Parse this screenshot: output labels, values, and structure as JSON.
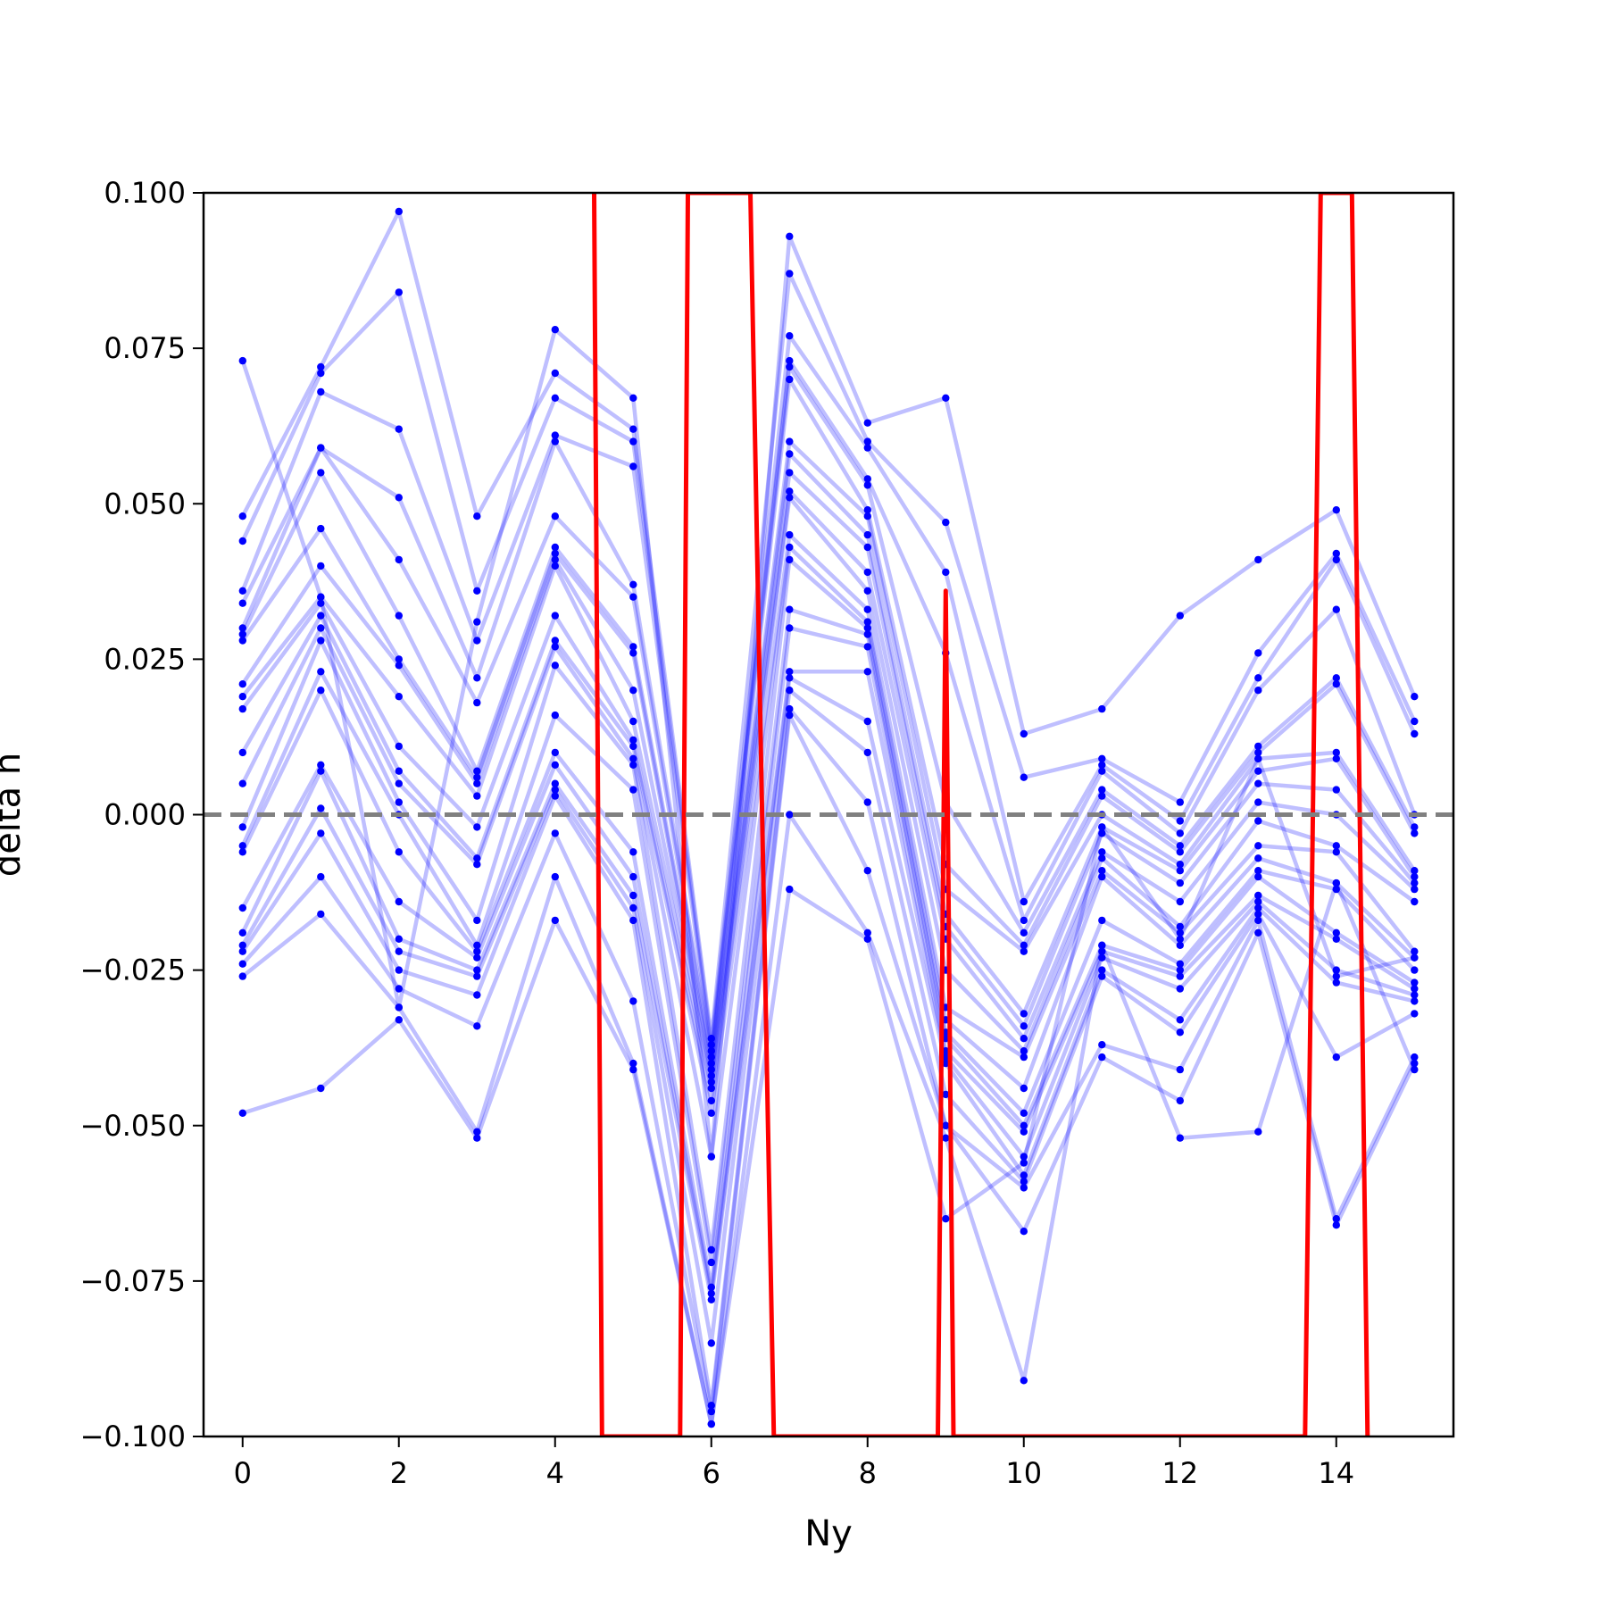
{
  "chart_data": {
    "type": "line",
    "title": "",
    "xlabel": "Ny",
    "ylabel": "delta h",
    "xlim": [
      -0.5,
      15.5
    ],
    "ylim": [
      -0.1,
      0.1
    ],
    "grid": false,
    "x_ticks": [
      {
        "value": 0,
        "label": "0"
      },
      {
        "value": 2,
        "label": "2"
      },
      {
        "value": 4,
        "label": "4"
      },
      {
        "value": 6,
        "label": "6"
      },
      {
        "value": 8,
        "label": "8"
      },
      {
        "value": 10,
        "label": "10"
      },
      {
        "value": 12,
        "label": "12"
      },
      {
        "value": 14,
        "label": "14"
      }
    ],
    "y_ticks": [
      {
        "value": 0.1,
        "label": "0.100"
      },
      {
        "value": 0.075,
        "label": "0.075"
      },
      {
        "value": 0.05,
        "label": "0.050"
      },
      {
        "value": 0.025,
        "label": "0.025"
      },
      {
        "value": 0.0,
        "label": "0.000"
      },
      {
        "value": -0.025,
        "label": "−0.025"
      },
      {
        "value": -0.05,
        "label": "−0.050"
      },
      {
        "value": -0.075,
        "label": "−0.075"
      },
      {
        "value": -0.1,
        "label": "−0.100"
      }
    ],
    "reference_line": {
      "y": 0.0,
      "color": "#808080",
      "style": "dashed"
    },
    "colors": {
      "samples": "#0000ff",
      "mean": "#ff0000"
    },
    "x": [
      0,
      1,
      2,
      3,
      4,
      5,
      6,
      7,
      8,
      9,
      10,
      11,
      12,
      13,
      14,
      15
    ],
    "samples": [
      [
        0.073,
        0.035,
        -0.031,
        0.031,
        0.078,
        0.067,
        -0.055,
        0.093,
        0.063,
        0.067,
        0.013,
        0.017,
        0.032,
        0.041,
        0.049,
        0.019
      ],
      [
        0.048,
        0.072,
        0.097,
        0.048,
        0.071,
        0.062,
        -0.036,
        0.087,
        0.06,
        0.047,
        0.006,
        0.009,
        0.002,
        0.026,
        0.042,
        0.015
      ],
      [
        0.044,
        0.071,
        0.084,
        0.036,
        0.067,
        0.06,
        -0.037,
        0.077,
        0.059,
        0.039,
        -0.014,
        0.008,
        -0.001,
        0.022,
        0.041,
        0.013
      ],
      [
        0.036,
        0.068,
        0.062,
        0.028,
        0.061,
        0.056,
        -0.038,
        0.073,
        0.054,
        0.026,
        -0.017,
        0.007,
        -0.003,
        0.02,
        0.033,
        0.0
      ],
      [
        0.034,
        0.059,
        0.051,
        0.022,
        0.06,
        0.037,
        -0.039,
        0.072,
        0.053,
        0.002,
        -0.019,
        0.004,
        -0.005,
        0.011,
        0.022,
        -0.002
      ],
      [
        0.03,
        0.059,
        0.041,
        0.018,
        0.048,
        0.035,
        -0.04,
        0.07,
        0.049,
        -0.008,
        -0.021,
        0.003,
        -0.006,
        0.01,
        0.021,
        -0.003
      ],
      [
        0.029,
        0.055,
        0.032,
        0.007,
        0.043,
        0.027,
        -0.041,
        0.06,
        0.048,
        -0.012,
        -0.022,
        0.0,
        -0.008,
        0.009,
        0.01,
        -0.009
      ],
      [
        0.028,
        0.046,
        0.025,
        0.006,
        0.042,
        0.026,
        -0.042,
        0.058,
        0.045,
        -0.016,
        -0.032,
        -0.002,
        -0.009,
        0.007,
        0.009,
        -0.01
      ],
      [
        0.021,
        0.04,
        0.024,
        0.005,
        0.041,
        0.02,
        -0.043,
        0.055,
        0.043,
        -0.018,
        -0.034,
        -0.003,
        -0.011,
        0.005,
        0.004,
        -0.011
      ],
      [
        0.019,
        0.035,
        0.019,
        0.003,
        0.04,
        0.015,
        -0.044,
        0.052,
        0.039,
        -0.02,
        -0.036,
        -0.006,
        -0.014,
        0.002,
        0.0,
        -0.012
      ],
      [
        0.017,
        0.034,
        0.011,
        -0.002,
        0.032,
        0.012,
        -0.046,
        0.051,
        0.036,
        -0.025,
        -0.038,
        -0.007,
        -0.018,
        -0.001,
        -0.005,
        -0.014
      ],
      [
        0.01,
        0.032,
        0.007,
        -0.007,
        0.028,
        0.011,
        -0.048,
        0.045,
        0.033,
        -0.031,
        -0.039,
        -0.009,
        -0.019,
        -0.005,
        -0.006,
        -0.022
      ],
      [
        0.005,
        0.03,
        0.005,
        -0.008,
        0.027,
        0.009,
        -0.055,
        0.043,
        0.031,
        -0.033,
        -0.044,
        -0.01,
        -0.021,
        -0.007,
        -0.011,
        -0.023
      ],
      [
        -0.002,
        0.028,
        0.002,
        -0.017,
        0.024,
        0.008,
        -0.07,
        0.041,
        0.03,
        -0.035,
        -0.048,
        -0.017,
        -0.024,
        -0.009,
        -0.012,
        -0.025
      ],
      [
        -0.005,
        0.023,
        0.0,
        -0.021,
        0.016,
        0.004,
        -0.072,
        0.033,
        0.029,
        -0.036,
        -0.05,
        -0.021,
        -0.025,
        -0.01,
        -0.019,
        -0.027
      ],
      [
        -0.006,
        0.02,
        -0.006,
        -0.022,
        0.01,
        -0.006,
        -0.076,
        0.03,
        0.027,
        -0.038,
        -0.051,
        -0.022,
        -0.026,
        -0.013,
        -0.02,
        -0.028
      ],
      [
        -0.015,
        0.008,
        -0.014,
        -0.023,
        0.008,
        -0.01,
        -0.077,
        0.023,
        0.023,
        -0.039,
        -0.055,
        -0.023,
        -0.028,
        -0.014,
        -0.025,
        -0.029
      ],
      [
        -0.019,
        0.007,
        -0.02,
        -0.025,
        0.005,
        -0.013,
        -0.078,
        0.022,
        0.015,
        -0.04,
        -0.058,
        -0.025,
        -0.033,
        -0.015,
        -0.027,
        -0.03
      ],
      [
        -0.021,
        0.001,
        -0.022,
        -0.026,
        0.004,
        -0.015,
        -0.085,
        0.02,
        0.01,
        -0.045,
        -0.059,
        -0.026,
        -0.035,
        -0.016,
        -0.039,
        -0.032
      ],
      [
        -0.022,
        -0.003,
        -0.025,
        -0.029,
        0.003,
        -0.017,
        -0.095,
        0.017,
        0.002,
        -0.05,
        -0.06,
        -0.037,
        -0.041,
        -0.017,
        -0.065,
        -0.039
      ],
      [
        -0.024,
        -0.01,
        -0.028,
        -0.034,
        -0.003,
        -0.03,
        -0.096,
        0.016,
        -0.009,
        -0.05,
        -0.067,
        -0.039,
        -0.046,
        -0.019,
        -0.066,
        -0.04
      ],
      [
        -0.026,
        -0.016,
        -0.031,
        -0.051,
        -0.01,
        -0.04,
        -0.098,
        0.0,
        -0.019,
        -0.052,
        -0.091,
        -0.021,
        -0.052,
        -0.051,
        -0.011,
        -0.041
      ],
      [
        -0.048,
        -0.044,
        -0.033,
        -0.052,
        -0.017,
        -0.041,
        -0.098,
        -0.012,
        -0.02,
        -0.065,
        -0.056,
        -0.002,
        -0.02,
        0.009,
        -0.026,
        -0.023
      ]
    ],
    "mean_series": {
      "x": [
        4.5,
        4.6,
        5.6,
        5.7,
        6.5,
        6.8,
        8.9,
        9.0,
        9.1,
        13.6,
        13.8,
        14.2,
        14.4
      ],
      "y": [
        0.1,
        -0.1,
        -0.1,
        0.1,
        0.1,
        -0.1,
        -0.1,
        0.036,
        -0.1,
        -0.1,
        0.1,
        0.1,
        -0.1
      ]
    }
  }
}
